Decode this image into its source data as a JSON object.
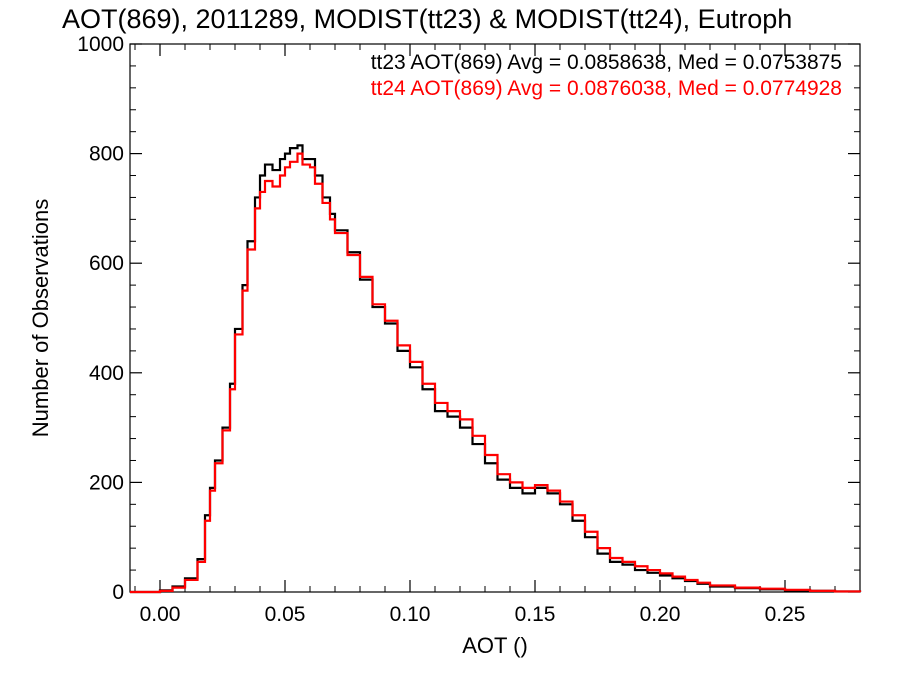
{
  "chart_data": {
    "type": "histogram",
    "title": "AOT(869), 2011289, MODIST(tt23) & MODIST(tt24), Eutroph",
    "xlabel": "AOT ()",
    "ylabel": "Number of Observations",
    "xlim": [
      -0.012,
      0.28
    ],
    "ylim": [
      0,
      1000
    ],
    "xticks": [
      0.0,
      0.05,
      0.1,
      0.15,
      0.2,
      0.25
    ],
    "xtick_labels": [
      "0.00",
      "0.05",
      "0.10",
      "0.15",
      "0.20",
      "0.25"
    ],
    "yticks": [
      0,
      200,
      400,
      600,
      800,
      1000
    ],
    "ytick_labels": [
      "0",
      "200",
      "400",
      "600",
      "800",
      "1000"
    ],
    "legend_placement": "top-right",
    "series": [
      {
        "name": "tt23",
        "color": "#000000",
        "legend": "tt23 AOT(869) Avg = 0.0858638, Med = 0.0753875",
        "x": [
          -0.012,
          -0.005,
          0.0,
          0.005,
          0.01,
          0.015,
          0.018,
          0.02,
          0.022,
          0.025,
          0.028,
          0.03,
          0.033,
          0.035,
          0.038,
          0.04,
          0.042,
          0.045,
          0.048,
          0.05,
          0.052,
          0.055,
          0.057,
          0.06,
          0.062,
          0.065,
          0.068,
          0.07,
          0.075,
          0.08,
          0.085,
          0.09,
          0.095,
          0.1,
          0.105,
          0.11,
          0.115,
          0.12,
          0.125,
          0.13,
          0.135,
          0.14,
          0.145,
          0.15,
          0.155,
          0.16,
          0.165,
          0.17,
          0.175,
          0.18,
          0.185,
          0.19,
          0.195,
          0.2,
          0.205,
          0.21,
          0.215,
          0.22,
          0.23,
          0.24,
          0.25,
          0.26,
          0.27,
          0.28
        ],
        "y": [
          0,
          0,
          3,
          10,
          25,
          60,
          140,
          190,
          240,
          300,
          380,
          480,
          560,
          640,
          720,
          760,
          780,
          770,
          790,
          800,
          810,
          815,
          790,
          790,
          760,
          720,
          690,
          660,
          620,
          570,
          520,
          490,
          440,
          410,
          370,
          330,
          320,
          300,
          270,
          235,
          205,
          190,
          180,
          190,
          180,
          160,
          130,
          100,
          70,
          55,
          50,
          40,
          35,
          30,
          25,
          20,
          15,
          10,
          7,
          5,
          3,
          2,
          1,
          0
        ]
      },
      {
        "name": "tt24",
        "color": "#ff0000",
        "legend": "tt24 AOT(869) Avg = 0.0876038, Med = 0.0774928",
        "x": [
          -0.012,
          -0.005,
          0.0,
          0.005,
          0.01,
          0.015,
          0.018,
          0.02,
          0.022,
          0.025,
          0.028,
          0.03,
          0.033,
          0.035,
          0.038,
          0.04,
          0.042,
          0.045,
          0.048,
          0.05,
          0.052,
          0.055,
          0.057,
          0.06,
          0.062,
          0.065,
          0.068,
          0.07,
          0.075,
          0.08,
          0.085,
          0.09,
          0.095,
          0.1,
          0.105,
          0.11,
          0.115,
          0.12,
          0.125,
          0.13,
          0.135,
          0.14,
          0.145,
          0.15,
          0.155,
          0.16,
          0.165,
          0.17,
          0.175,
          0.18,
          0.185,
          0.19,
          0.195,
          0.2,
          0.205,
          0.21,
          0.215,
          0.22,
          0.23,
          0.24,
          0.25,
          0.26,
          0.27,
          0.28
        ],
        "y": [
          0,
          0,
          2,
          8,
          22,
          55,
          130,
          185,
          235,
          295,
          370,
          470,
          550,
          625,
          700,
          730,
          750,
          740,
          760,
          775,
          785,
          800,
          780,
          775,
          745,
          710,
          680,
          655,
          615,
          575,
          525,
          495,
          450,
          420,
          380,
          345,
          330,
          315,
          285,
          250,
          215,
          200,
          190,
          195,
          185,
          165,
          140,
          110,
          80,
          62,
          55,
          47,
          40,
          34,
          28,
          22,
          17,
          12,
          8,
          6,
          4,
          2,
          1,
          0
        ]
      }
    ]
  }
}
